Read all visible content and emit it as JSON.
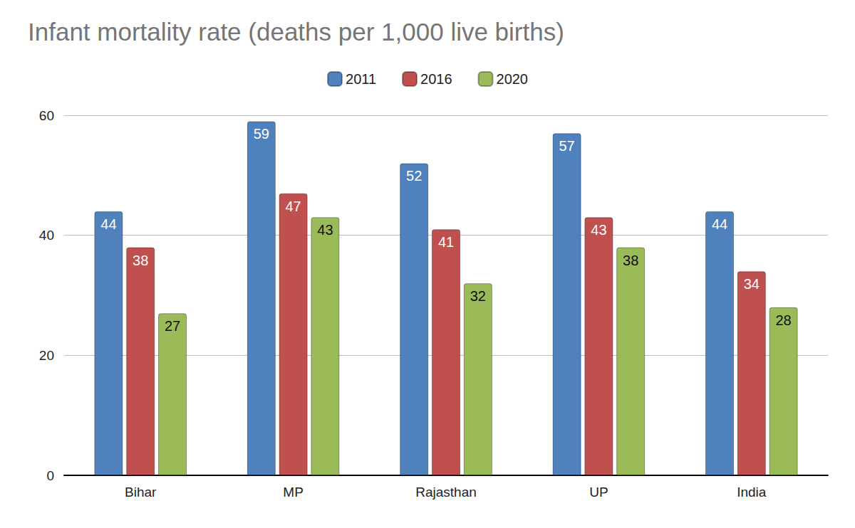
{
  "chart_data": {
    "type": "bar",
    "title": "Infant mortality rate (deaths per 1,000 live births)",
    "categories": [
      "Bihar",
      "MP",
      "Rajasthan",
      "UP",
      "India"
    ],
    "series": [
      {
        "name": "2011",
        "color": "#4f81bd",
        "values": [
          44,
          59,
          52,
          57,
          44
        ]
      },
      {
        "name": "2016",
        "color": "#c0504d",
        "values": [
          38,
          47,
          41,
          43,
          34
        ]
      },
      {
        "name": "2020",
        "color": "#9bbb59",
        "values": [
          27,
          43,
          32,
          38,
          28
        ]
      }
    ],
    "ylim": [
      0,
      60
    ],
    "yticks": [
      0,
      20,
      40,
      60
    ],
    "grid": true,
    "legend": "top",
    "data_labels": true
  }
}
